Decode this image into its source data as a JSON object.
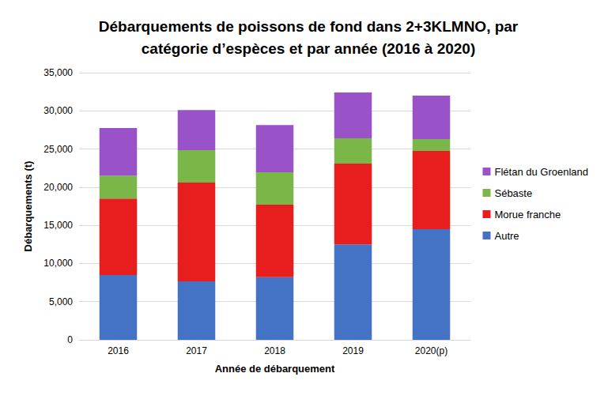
{
  "chart_data": {
    "type": "bar",
    "title": "Débarquements de poissons de fond dans 2+3KLMNO, par\ncatégorie d’espèces et par année (2016 à 2020)",
    "x_label": "Année de débarquement",
    "y_label": "Débarquements (t)",
    "categories": [
      "2016",
      "2017",
      "2018",
      "2019",
      "2020(p)"
    ],
    "stacked": true,
    "grid": true,
    "legend": "right",
    "series": [
      {
        "name": "Autre",
        "color": "#4472C4",
        "values": [
          8500,
          7650,
          8200,
          12500,
          14500
        ]
      },
      {
        "name": "Morue franche",
        "color": "#E81E1E",
        "values": [
          10000,
          12950,
          9500,
          10600,
          10250
        ]
      },
      {
        "name": "Sébaste",
        "color": "#7AB648",
        "values": [
          3000,
          4250,
          4250,
          3300,
          1550
        ]
      },
      {
        "name": "Flétan du Groenland",
        "color": "#9A52C9",
        "values": [
          6250,
          5250,
          6200,
          6000,
          5700
        ]
      }
    ],
    "ylim": [
      0,
      35000
    ],
    "yticks": [
      0,
      {
        "value": 5000,
        "label": "5,000"
      },
      {
        "value": 10000,
        "label": "10,000"
      },
      {
        "value": 15000,
        "label": "15,000"
      },
      {
        "value": 20000,
        "label": "20,000"
      },
      {
        "value": 25000,
        "label": "25,000"
      },
      {
        "value": 30000,
        "label": "30,000"
      },
      {
        "value": 35000,
        "label": "35,000"
      }
    ]
  }
}
